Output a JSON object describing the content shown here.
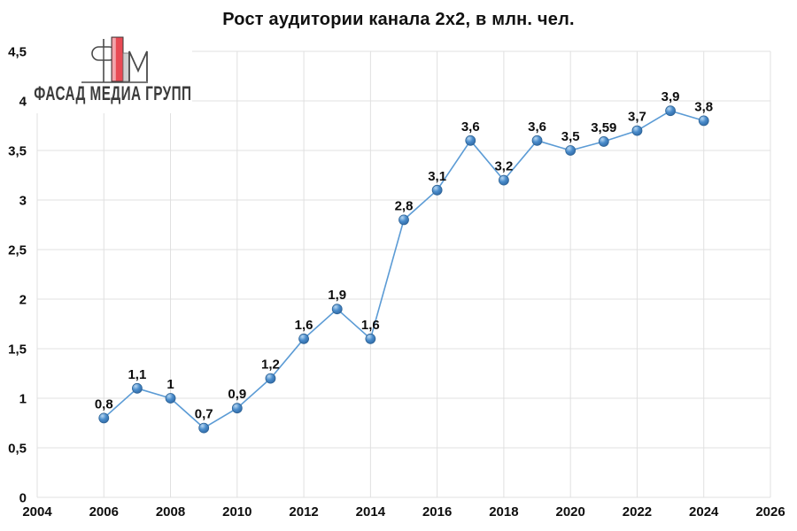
{
  "title": "Рост аудитории канала 2x2, в млн. чел.",
  "logo": {
    "text": "ФАСАД МЕДИА ГРУПП"
  },
  "colors": {
    "series_line": "#5b9bd5",
    "marker_highlight": "#b9d8f2",
    "marker_mid": "#4a8ccb",
    "marker_deep": "#2a629e",
    "marker_border": "#2f6496",
    "gridline": "#e0e0e0",
    "text": "#0d0d0d",
    "logo_red": "#e84a54",
    "logo_red_light": "#f2a3aa",
    "logo_gray": "#d0d0d0",
    "logo_dark": "#4a4a4a"
  },
  "chart_data": {
    "type": "line",
    "title": "Рост аудитории канала 2x2, в млн. чел.",
    "x": [
      2006,
      2007,
      2008,
      2009,
      2010,
      2011,
      2012,
      2013,
      2014,
      2015,
      2016,
      2017,
      2018,
      2019,
      2020,
      2021,
      2022,
      2023,
      2024
    ],
    "values": [
      0.8,
      1.1,
      1.0,
      0.7,
      0.9,
      1.2,
      1.6,
      1.9,
      1.6,
      2.8,
      3.1,
      3.6,
      3.2,
      3.6,
      3.5,
      3.59,
      3.7,
      3.9,
      3.8
    ],
    "point_labels": [
      "0,8",
      "1,1",
      "1",
      "0,7",
      "0,9",
      "1,2",
      "1,6",
      "1,9",
      "1,6",
      "2,8",
      "3,1",
      "3,6",
      "3,2",
      "3,6",
      "3,5",
      "3,59",
      "3,7",
      "3,9",
      "3,8"
    ],
    "xlabel": "",
    "ylabel": "",
    "xlim": [
      2004,
      2026
    ],
    "ylim": [
      0,
      4.5
    ],
    "x_tick_values": [
      2004,
      2006,
      2008,
      2010,
      2012,
      2014,
      2016,
      2018,
      2020,
      2022,
      2024,
      2026
    ],
    "x_tick_labels": [
      "2004",
      "2006",
      "2008",
      "2010",
      "2012",
      "2014",
      "2016",
      "2018",
      "2020",
      "2022",
      "2024",
      "2026"
    ],
    "y_tick_values": [
      0,
      0.5,
      1,
      1.5,
      2,
      2.5,
      3,
      3.5,
      4,
      4.5
    ],
    "y_tick_labels": [
      "0",
      "0,5",
      "1",
      "1,5",
      "2",
      "2,5",
      "3",
      "3,5",
      "4",
      "4,5"
    ],
    "grid": true,
    "legend": false
  }
}
